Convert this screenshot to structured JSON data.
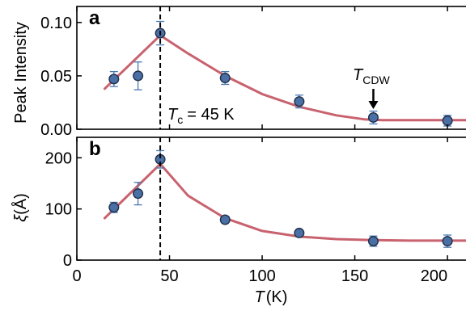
{
  "chart_data": [
    {
      "type": "scatter",
      "panel_label": "a",
      "ylabel": "Peak Intensity",
      "xlabel": "",
      "xlim": [
        0,
        210
      ],
      "ylim": [
        0,
        0.115
      ],
      "x_ticks": [
        0,
        50,
        100,
        150,
        200
      ],
      "y_ticks": [
        0.0,
        0.05,
        0.1
      ],
      "y_tick_labels": [
        "0.00",
        "0.05",
        "0.10"
      ],
      "grid": false,
      "series": [
        {
          "x": [
            20,
            33,
            45,
            80,
            120,
            160,
            200
          ],
          "y": [
            0.047,
            0.05,
            0.09,
            0.048,
            0.026,
            0.011,
            0.008
          ],
          "yerr": [
            0.007,
            0.013,
            0.011,
            0.006,
            0.006,
            0.006,
            0.005
          ]
        }
      ],
      "fit": {
        "x": [
          15,
          45,
          60,
          80,
          100,
          120,
          140,
          155,
          165,
          180,
          210
        ],
        "y": [
          0.038,
          0.088,
          0.071,
          0.05,
          0.033,
          0.021,
          0.013,
          0.0093,
          0.0085,
          0.0085,
          0.0085
        ]
      },
      "vline_x": 45,
      "annotations": {
        "tc_symbol": "T",
        "tc_subscript": "c",
        "tc_value": "= 45 K",
        "cdw_symbol": "T",
        "cdw_subscript": "CDW",
        "cdw_arrow_x": 160
      }
    },
    {
      "type": "scatter",
      "panel_label": "b",
      "ylabel_symbol": "ξ",
      "ylabel_unit": "(Å)",
      "xlabel_symbol": "T",
      "xlabel_unit": "(K)",
      "xlim": [
        0,
        210
      ],
      "ylim": [
        0,
        240
      ],
      "x_ticks": [
        0,
        50,
        100,
        150,
        200
      ],
      "x_tick_labels": [
        "0",
        "50",
        "100",
        "150",
        "200"
      ],
      "y_ticks": [
        0,
        100,
        200
      ],
      "y_tick_labels": [
        "0",
        "100",
        "200"
      ],
      "grid": false,
      "series": [
        {
          "x": [
            20,
            33,
            45,
            80,
            120,
            160,
            200
          ],
          "y": [
            103,
            130,
            197,
            79,
            53,
            37,
            37
          ],
          "yerr": [
            10,
            22,
            17,
            6,
            5,
            10,
            12
          ]
        }
      ],
      "fit": {
        "x": [
          15,
          45,
          60,
          80,
          100,
          120,
          140,
          160,
          180,
          210
        ],
        "y": [
          82,
          188,
          126,
          82,
          57,
          46,
          41,
          39,
          38,
          38
        ]
      },
      "vline_x": 45
    }
  ],
  "colors": {
    "marker_fill": "#4a6fa5",
    "marker_edge": "#1f2f4a",
    "errorbar": "#4a78b0",
    "fit_line": "#c8626e",
    "axis": "#000000"
  }
}
